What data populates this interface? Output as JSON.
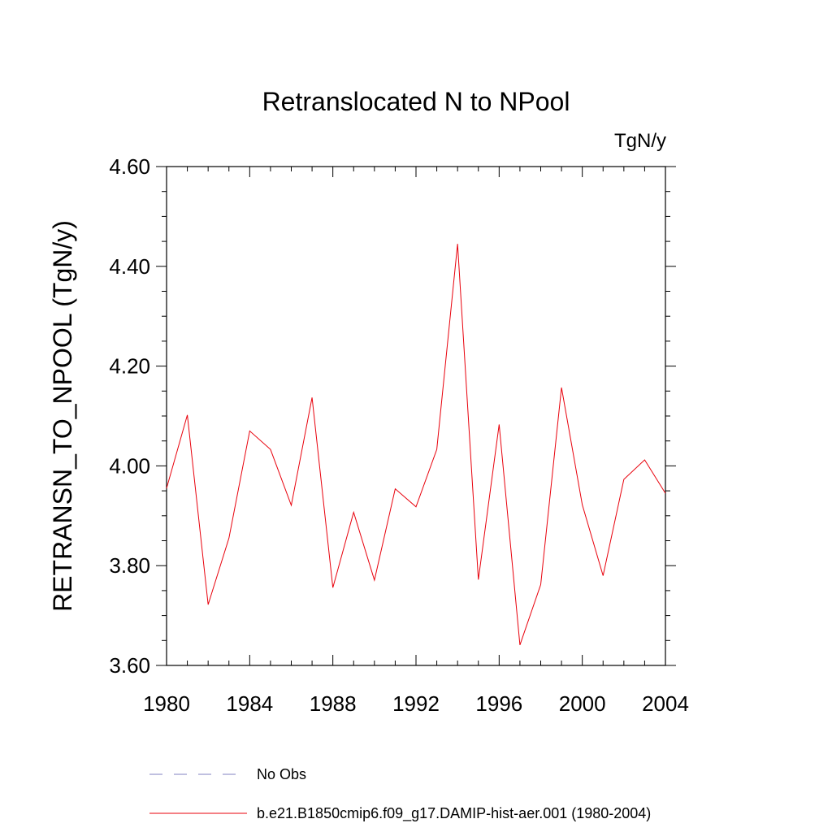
{
  "chart_data": {
    "type": "line",
    "title": "Retranslocated N to NPool",
    "units_label": "TgN/y",
    "ylabel": "RETRANSN_TO_NPOOL  (TgN/y)",
    "xlabel": "",
    "xlim": [
      1980,
      2004
    ],
    "ylim": [
      3.6,
      4.6
    ],
    "x_ticks": [
      1980,
      1984,
      1988,
      1992,
      1996,
      2000,
      2004
    ],
    "x_tick_labels": [
      "1980",
      "1984",
      "1988",
      "1992",
      "1996",
      "2000",
      "2004"
    ],
    "y_ticks": [
      3.6,
      3.8,
      4.0,
      4.2,
      4.4,
      4.6
    ],
    "y_tick_labels": [
      "3.60",
      "3.80",
      "4.00",
      "4.20",
      "4.40",
      "4.60"
    ],
    "grid": false,
    "legend_position": "bottom",
    "legend": [
      {
        "label": "No Obs",
        "color": "#8080c0",
        "dash": true
      },
      {
        "label": "b.e21.B1850cmip6.f09_g17.DAMIP-hist-aer.001 (1980-2004)",
        "color": "#e8000b",
        "dash": false
      }
    ],
    "series": [
      {
        "name": "b.e21.B1850cmip6.f09_g17.DAMIP-hist-aer.001 (1980-2004)",
        "color": "#e8000b",
        "x": [
          1980,
          1981,
          1982,
          1983,
          1984,
          1985,
          1986,
          1987,
          1988,
          1989,
          1990,
          1991,
          1992,
          1993,
          1994,
          1995,
          1996,
          1997,
          1998,
          1999,
          2000,
          2001,
          2002,
          2003,
          2004
        ],
        "values": [
          3.955,
          4.102,
          3.722,
          3.855,
          4.07,
          4.033,
          3.921,
          4.137,
          3.756,
          3.907,
          3.771,
          3.954,
          3.918,
          4.033,
          4.445,
          3.772,
          4.083,
          3.641,
          3.762,
          4.157,
          3.922,
          3.78,
          3.973,
          4.012,
          3.945
        ]
      }
    ]
  }
}
